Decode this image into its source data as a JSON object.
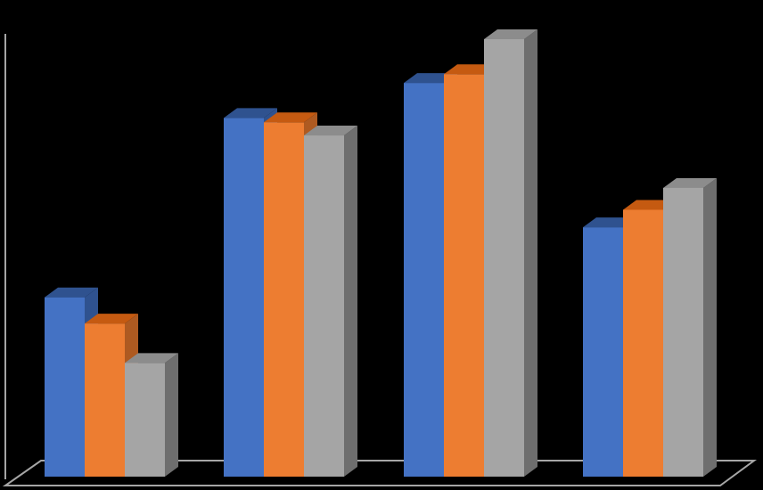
{
  "chart_data": {
    "type": "bar",
    "style": "3d-clustered-column",
    "background": "#000000",
    "axis_color": "#a6a6a6",
    "grid": false,
    "legend": "none",
    "ylim": [
      0,
      100
    ],
    "categories": [
      "",
      "",
      "",
      ""
    ],
    "series": [
      {
        "color": "#4472c4",
        "top_color": "#2f528f",
        "side_color": "#2f528f",
        "values": [
          41,
          82,
          90,
          57
        ]
      },
      {
        "color": "#ed7d31",
        "top_color": "#c55a11",
        "side_color": "#ae5a21",
        "values": [
          35,
          81,
          92,
          61
        ]
      },
      {
        "color": "#a5a5a5",
        "top_color": "#8c8c8c",
        "side_color": "#6e6e6e",
        "values": [
          26,
          78,
          100,
          66
        ]
      }
    ]
  }
}
